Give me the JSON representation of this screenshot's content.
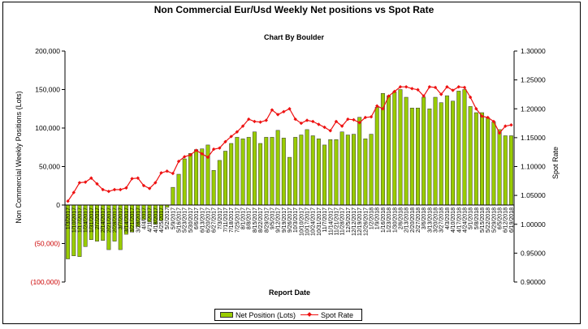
{
  "chart_data": {
    "type": "bar+line",
    "title": "Non Commercial Eur/Usd Weekly Net positions vs Spot Rate",
    "subtitle": "Chart By Boulder",
    "xlabel": "Report Date",
    "ylabel_left": "Non Commercial Weekly Positions (Lots)",
    "ylabel_right": "Spot Rate",
    "left_axis": {
      "min": -100000,
      "max": 200000,
      "step": 50000,
      "ticks": [
        "(100,000)",
        "(50,000)",
        "0",
        "50,000",
        "100,000",
        "150,000",
        "200,000"
      ],
      "negative_color": "#cc0000"
    },
    "right_axis": {
      "min": 0.9,
      "max": 1.3,
      "step": 0.05,
      "ticks": [
        "0.90000",
        "0.95000",
        "1.00000",
        "1.05000",
        "1.10000",
        "1.15000",
        "1.20000",
        "1.25000",
        "1.30000"
      ]
    },
    "categories": [
      "1/3/2017",
      "1/10/2017",
      "1/17/2017",
      "1/24/2017",
      "1/31/2017",
      "2/7/2017",
      "2/14/2017",
      "2/21/2017",
      "2/28/2017",
      "3/7/2017",
      "3/14/2017",
      "3/21/2017",
      "3/28/2017",
      "4/4/2017",
      "4/11/2017",
      "4/18/2017",
      "4/25/2017",
      "5/2/2017",
      "5/9/2017",
      "5/16/2017",
      "5/23/2017",
      "5/30/2017",
      "6/6/2017",
      "6/13/2017",
      "6/20/2017",
      "6/27/2017",
      "7/3/2017",
      "7/11/2017",
      "7/18/2017",
      "7/25/2017",
      "8/1/2017",
      "8/8/2017",
      "8/15/2017",
      "8/22/2017",
      "8/29/2017",
      "9/5/2017",
      "9/12/2017",
      "9/19/2017",
      "9/26/2017",
      "10/3/2017",
      "10/10/2017",
      "10/17/2017",
      "10/24/2017",
      "10/31/2017",
      "11/7/2017",
      "11/14/2017",
      "11/21/2017",
      "11/28/2017",
      "12/5/2017",
      "12/12/2017",
      "12/19/2017",
      "12/26/2017",
      "1/2/2018",
      "1/9/2018",
      "1/16/2018",
      "1/23/2018",
      "1/30/2018",
      "2/6/2018",
      "2/13/2018",
      "2/20/2018",
      "2/27/2018",
      "3/6/2018",
      "3/13/2018",
      "3/20/2018",
      "3/27/2018",
      "4/3/2018",
      "4/10/2018",
      "4/17/2018",
      "4/24/2018",
      "5/1/2018",
      "5/8/2018",
      "5/15/2018",
      "5/22/2018",
      "5/29/2018",
      "6/5/2018",
      "6/12/2018",
      "6/19/2018"
    ],
    "series": [
      {
        "name": "Net Position (Lots)",
        "kind": "bar",
        "color": "#99cc00",
        "border": "#333333",
        "values": [
          -70000,
          -66000,
          -67000,
          -54000,
          -45000,
          -47000,
          -46000,
          -58000,
          -47000,
          -58000,
          -38000,
          -35000,
          -28000,
          -19000,
          -22000,
          -25000,
          -20000,
          -3000,
          23000,
          40000,
          60000,
          67000,
          72000,
          73000,
          78000,
          45000,
          58000,
          70000,
          80000,
          88000,
          86000,
          88000,
          95000,
          80000,
          88000,
          88000,
          97000,
          87000,
          62000,
          88000,
          91000,
          98000,
          90000,
          86000,
          78000,
          85000,
          85000,
          95000,
          91000,
          92000,
          114000,
          86000,
          92000,
          127000,
          145000,
          142000,
          147000,
          150000,
          140000,
          126000,
          126000,
          140000,
          125000,
          140000,
          133000,
          142000,
          135000,
          148000,
          150000,
          128000,
          120000,
          120000,
          113000,
          108000,
          98000,
          90000,
          90000
        ]
      },
      {
        "name": "Spot Rate",
        "kind": "line",
        "color": "#ee1111",
        "marker": "diamond",
        "values": [
          1.04,
          1.055,
          1.072,
          1.073,
          1.08,
          1.07,
          1.06,
          1.057,
          1.06,
          1.06,
          1.063,
          1.079,
          1.08,
          1.067,
          1.062,
          1.072,
          1.089,
          1.092,
          1.088,
          1.109,
          1.117,
          1.12,
          1.128,
          1.122,
          1.116,
          1.13,
          1.132,
          1.143,
          1.152,
          1.16,
          1.17,
          1.182,
          1.178,
          1.177,
          1.18,
          1.198,
          1.19,
          1.195,
          1.2,
          1.182,
          1.175,
          1.18,
          1.178,
          1.173,
          1.168,
          1.162,
          1.178,
          1.17,
          1.182,
          1.181,
          1.176,
          1.185,
          1.186,
          1.205,
          1.2,
          1.222,
          1.23,
          1.238,
          1.238,
          1.235,
          1.233,
          1.222,
          1.238,
          1.237,
          1.225,
          1.238,
          1.232,
          1.238,
          1.237,
          1.22,
          1.2,
          1.187,
          1.185,
          1.178,
          1.158,
          1.17,
          1.172
        ]
      }
    ],
    "legend": {
      "position": "bottom"
    },
    "grid": false
  }
}
